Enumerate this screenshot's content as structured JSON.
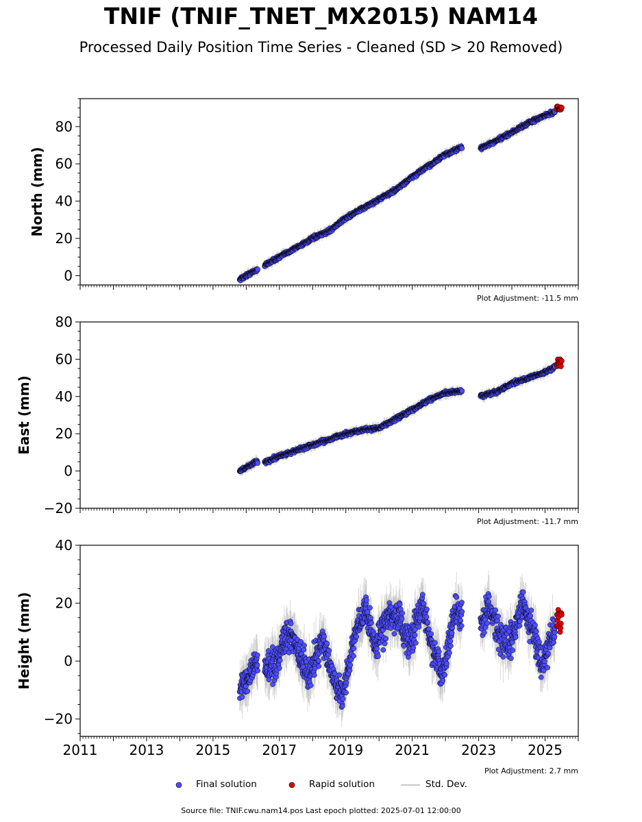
{
  "title": "TNIF (TNIF_TNET_MX2015) NAM14",
  "subtitle": "Processed Daily Position Time Series - Cleaned (SD > 20 Removed)",
  "source_line": "Source file: TNIF.cwu.nam14.pos  Last epoch plotted: 2025-07-01 12:00:00",
  "legend": {
    "final": "Final solution",
    "rapid": "Rapid solution",
    "std": "Std. Dev."
  },
  "colors": {
    "final": "#4d4dff",
    "rapid": "#e00000",
    "std": "#bbbbbb"
  },
  "chart_data": [
    {
      "type": "scatter",
      "ylabel": "North (mm)",
      "adjustment": "Plot Adjustment: -11.5 mm",
      "xlim": [
        2011,
        2026
      ],
      "ylim": [
        -5,
        95
      ],
      "yticks": [
        0,
        20,
        40,
        60,
        80
      ],
      "xtick_labels": false,
      "x": [
        2015.8,
        2016.3,
        2016.6,
        2017.0,
        2017.5,
        2018.0,
        2018.5,
        2019.0,
        2019.5,
        2020.0,
        2020.5,
        2021.0,
        2021.5,
        2022.0,
        2022.5,
        2023.0,
        2023.5,
        2024.0,
        2024.5,
        2025.0,
        2025.3
      ],
      "y": [
        -2,
        3,
        6,
        10,
        15,
        20,
        24,
        31,
        36,
        41,
        46,
        53,
        59,
        65,
        69,
        68,
        72,
        77,
        82,
        86,
        88
      ],
      "gaps": [
        [
          2016.35,
          2016.55
        ],
        [
          2022.5,
          2023.05
        ]
      ],
      "rapid": {
        "x": [
          2025.35,
          2025.5
        ],
        "y": [
          89,
          91
        ]
      }
    },
    {
      "type": "scatter",
      "ylabel": "East (mm)",
      "adjustment": "Plot Adjustment: -11.7 mm",
      "xlim": [
        2011,
        2026
      ],
      "ylim": [
        -20,
        80
      ],
      "yticks": [
        -20,
        0,
        20,
        40,
        60,
        80
      ],
      "xtick_labels": false,
      "x": [
        2015.8,
        2016.3,
        2016.6,
        2017.0,
        2017.5,
        2018.0,
        2018.5,
        2019.0,
        2019.5,
        2020.0,
        2020.5,
        2021.0,
        2021.5,
        2022.0,
        2022.5,
        2023.0,
        2023.5,
        2024.0,
        2024.5,
        2025.0,
        2025.3
      ],
      "y": [
        0,
        5,
        5,
        8,
        11,
        14,
        17,
        20,
        22,
        23,
        28,
        33,
        38,
        42,
        43,
        40,
        42,
        47,
        50,
        53,
        56
      ],
      "gaps": [
        [
          2016.35,
          2016.55
        ],
        [
          2022.5,
          2023.05
        ]
      ],
      "rapid": {
        "x": [
          2025.35,
          2025.5
        ],
        "y": [
          56,
          60
        ]
      }
    },
    {
      "type": "scatter",
      "ylabel": "Height (mm)",
      "adjustment": "Plot Adjustment: 2.7 mm",
      "xlim": [
        2011,
        2026
      ],
      "ylim": [
        -26,
        40
      ],
      "yticks": [
        -20,
        0,
        20,
        40
      ],
      "xticks": [
        2011,
        2013,
        2015,
        2017,
        2019,
        2021,
        2023,
        2025
      ],
      "xtick_labels": true,
      "x": [
        2015.8,
        2016.0,
        2016.3,
        2016.6,
        2016.9,
        2017.3,
        2017.6,
        2017.9,
        2018.3,
        2018.6,
        2018.9,
        2019.3,
        2019.6,
        2019.9,
        2020.3,
        2020.6,
        2020.9,
        2021.3,
        2021.6,
        2021.9,
        2022.3,
        2022.5,
        2023.0,
        2023.3,
        2023.6,
        2023.9,
        2024.3,
        2024.6,
        2024.9,
        2025.3
      ],
      "y": [
        -10,
        -8,
        0,
        -3,
        0,
        10,
        2,
        -5,
        8,
        -5,
        -12,
        10,
        18,
        5,
        15,
        15,
        5,
        20,
        5,
        -5,
        18,
        15,
        12,
        18,
        10,
        5,
        20,
        12,
        -2,
        12
      ],
      "gaps": [
        [
          2016.35,
          2016.55
        ],
        [
          2022.5,
          2023.05
        ]
      ],
      "rapid": {
        "x": [
          2025.35,
          2025.5
        ],
        "y": [
          10,
          18
        ]
      }
    }
  ]
}
